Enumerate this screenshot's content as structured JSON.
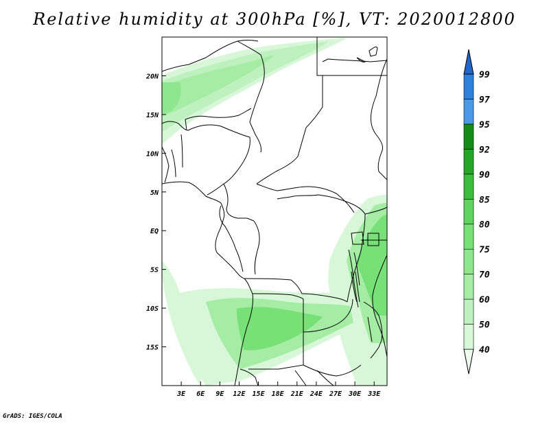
{
  "title": "Relative humidity at 300hPa [%], VT: 2020012800",
  "credit": "GrADS: IGES/COLA",
  "map": {
    "lon_range": [
      0,
      35
    ],
    "lat_range": [
      -20,
      25
    ],
    "lon_ticks": [
      "3E",
      "6E",
      "9E",
      "12E",
      "15E",
      "18E",
      "21E",
      "24E",
      "27E",
      "30E",
      "33E"
    ],
    "lat_ticks": [
      "20N",
      "15N",
      "10N",
      "5N",
      "EQ",
      "5S",
      "10S",
      "15S"
    ]
  },
  "colorbar": {
    "levels": [
      "40",
      "50",
      "60",
      "70",
      "75",
      "80",
      "85",
      "90",
      "92",
      "95",
      "97",
      "99"
    ],
    "colors": [
      "#eefcee",
      "#d8f7d8",
      "#bff1bf",
      "#a5eca5",
      "#8ee68e",
      "#77e077",
      "#5fd45f",
      "#3cbc3c",
      "#27a527",
      "#158c15",
      "#4b9ae8",
      "#2f7fdd",
      "#2166cc"
    ]
  }
}
